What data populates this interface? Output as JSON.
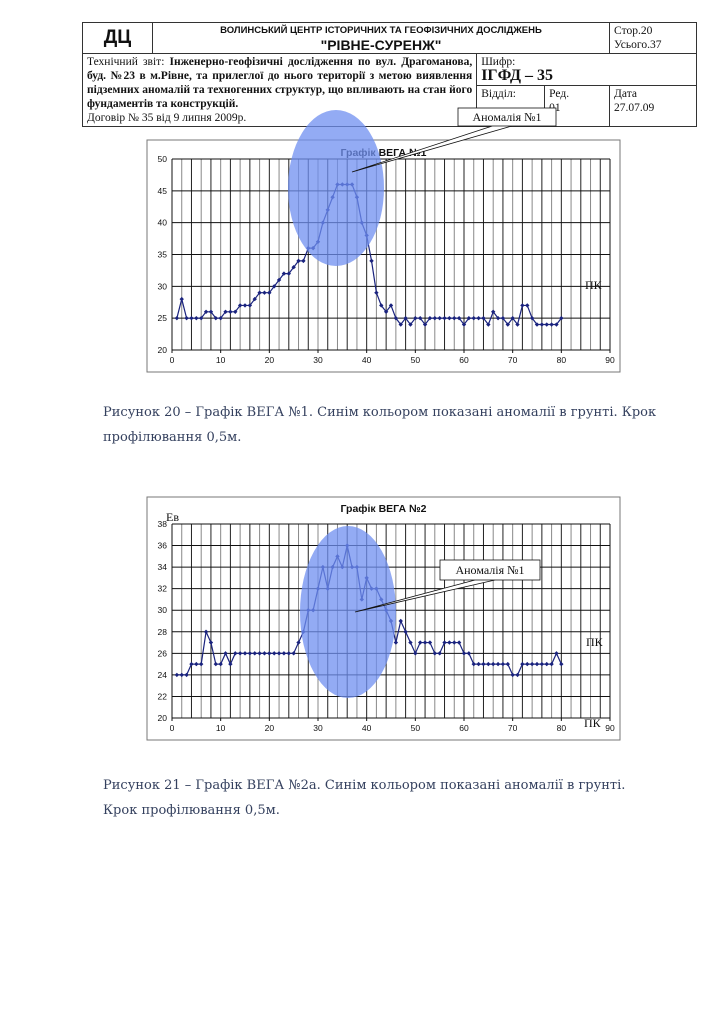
{
  "header": {
    "logo": "ДЦ",
    "org_line": "ВОЛИНСЬКИЙ ЦЕНТР ІСТОРИЧНИХ ТА ГЕОФІЗИЧНИХ ДОСЛІДЖЕНЬ",
    "org_name": "\"РІВНЕ-СУРЕНЖ\"",
    "page": "Стор.20",
    "total": "Усього.37",
    "report_prefix": "Технічний звіт: ",
    "report_text": "Інженерно-геофізичні дослідження по вул. Драгоманова, буд. №23 в м.Рівне, та прилеглої до нього території з метою виявлення підземних аномалій та техногенних структур, що впливають на стан його фундаментів та конструкцій.",
    "contract": "Договір № 35 від 9 липня 2009р.",
    "cipher_label": "Шифр:",
    "cipher": "ІГФД – 35",
    "dept_label": "Відділ:",
    "rev_label": "Ред.",
    "rev": "01",
    "date_label": "Дата",
    "date": "27.07.09"
  },
  "captions": {
    "fig20": "Рисунок 20 – Графік ВЕГА №1. Синім кольором показані аномалії в грунті. Крок профілювання 0,5м.",
    "fig21": "Рисунок 21 – Графік ВЕГА №2а. Синім кольором показані аномалії в грунті. Крок профілювання 0,5м."
  },
  "colors": {
    "series": "#1a237e",
    "anomaly": "#6f8ff0"
  },
  "chart_data": [
    {
      "type": "line",
      "title": "Графік ВЕГА №1",
      "xlabel": "ПК",
      "ylabel": "",
      "xlim": [
        0,
        90
      ],
      "ylim": [
        20,
        50
      ],
      "xticks": [
        0,
        10,
        20,
        30,
        40,
        50,
        60,
        70,
        80,
        90
      ],
      "yticks": [
        20,
        25,
        30,
        35,
        40,
        45,
        50
      ],
      "annotation": "Аномалія №1",
      "x": [
        1,
        2,
        3,
        4,
        5,
        6,
        7,
        8,
        9,
        10,
        11,
        12,
        13,
        14,
        15,
        16,
        17,
        18,
        19,
        20,
        21,
        22,
        23,
        24,
        25,
        26,
        27,
        28,
        29,
        30,
        31,
        32,
        33,
        34,
        35,
        36,
        37,
        38,
        39,
        40,
        41,
        42,
        43,
        44,
        45,
        46,
        47,
        48,
        49,
        50,
        51,
        52,
        53,
        54,
        55,
        56,
        57,
        58,
        59,
        60,
        61,
        62,
        63,
        64,
        65,
        66,
        67,
        68,
        69,
        70,
        71,
        72,
        73,
        74,
        75,
        76,
        77,
        78,
        79,
        80
      ],
      "y": [
        25,
        28,
        25,
        25,
        25,
        25,
        26,
        26,
        25,
        25,
        26,
        26,
        26,
        27,
        27,
        27,
        28,
        29,
        29,
        29,
        30,
        31,
        32,
        32,
        33,
        34,
        34,
        36,
        36,
        37,
        40,
        42,
        44,
        46,
        46,
        46,
        46,
        44,
        40,
        38,
        34,
        29,
        27,
        26,
        27,
        25,
        24,
        25,
        24,
        25,
        25,
        24,
        25,
        25,
        25,
        25,
        25,
        25,
        25,
        24,
        25,
        25,
        25,
        25,
        24,
        26,
        25,
        25,
        24,
        25,
        24,
        27,
        27,
        25,
        24,
        24,
        24,
        24,
        24,
        25
      ]
    },
    {
      "type": "line",
      "title": "Графік ВЕГА №2",
      "xlabel": "ПК",
      "ylabel": "Ев",
      "xlim": [
        0,
        90
      ],
      "ylim": [
        20,
        38
      ],
      "xticks": [
        0,
        10,
        20,
        30,
        40,
        50,
        60,
        70,
        80,
        90
      ],
      "yticks": [
        20,
        22,
        24,
        26,
        28,
        30,
        32,
        34,
        36,
        38
      ],
      "annotation": "Аномалія №1",
      "x": [
        1,
        2,
        3,
        4,
        5,
        6,
        7,
        8,
        9,
        10,
        11,
        12,
        13,
        14,
        15,
        16,
        17,
        18,
        19,
        20,
        21,
        22,
        23,
        24,
        25,
        26,
        27,
        28,
        29,
        30,
        31,
        32,
        33,
        34,
        35,
        36,
        37,
        38,
        39,
        40,
        41,
        42,
        43,
        44,
        45,
        46,
        47,
        48,
        49,
        50,
        51,
        52,
        53,
        54,
        55,
        56,
        57,
        58,
        59,
        60,
        61,
        62,
        63,
        64,
        65,
        66,
        67,
        68,
        69,
        70,
        71,
        72,
        73,
        74,
        75,
        76,
        77,
        78,
        79,
        80
      ],
      "y": [
        24,
        24,
        24,
        25,
        25,
        25,
        28,
        27,
        25,
        25,
        26,
        25,
        26,
        26,
        26,
        26,
        26,
        26,
        26,
        26,
        26,
        26,
        26,
        26,
        26,
        27,
        28,
        30,
        30,
        32,
        34,
        32,
        34,
        35,
        34,
        36,
        34,
        34,
        31,
        33,
        32,
        32,
        31,
        30,
        29,
        27,
        29,
        28,
        27,
        26,
        27,
        27,
        27,
        26,
        26,
        27,
        27,
        27,
        27,
        26,
        26,
        25,
        25,
        25,
        25,
        25,
        25,
        25,
        25,
        24,
        24,
        25,
        25,
        25,
        25,
        25,
        25,
        25,
        26,
        25
      ]
    }
  ]
}
